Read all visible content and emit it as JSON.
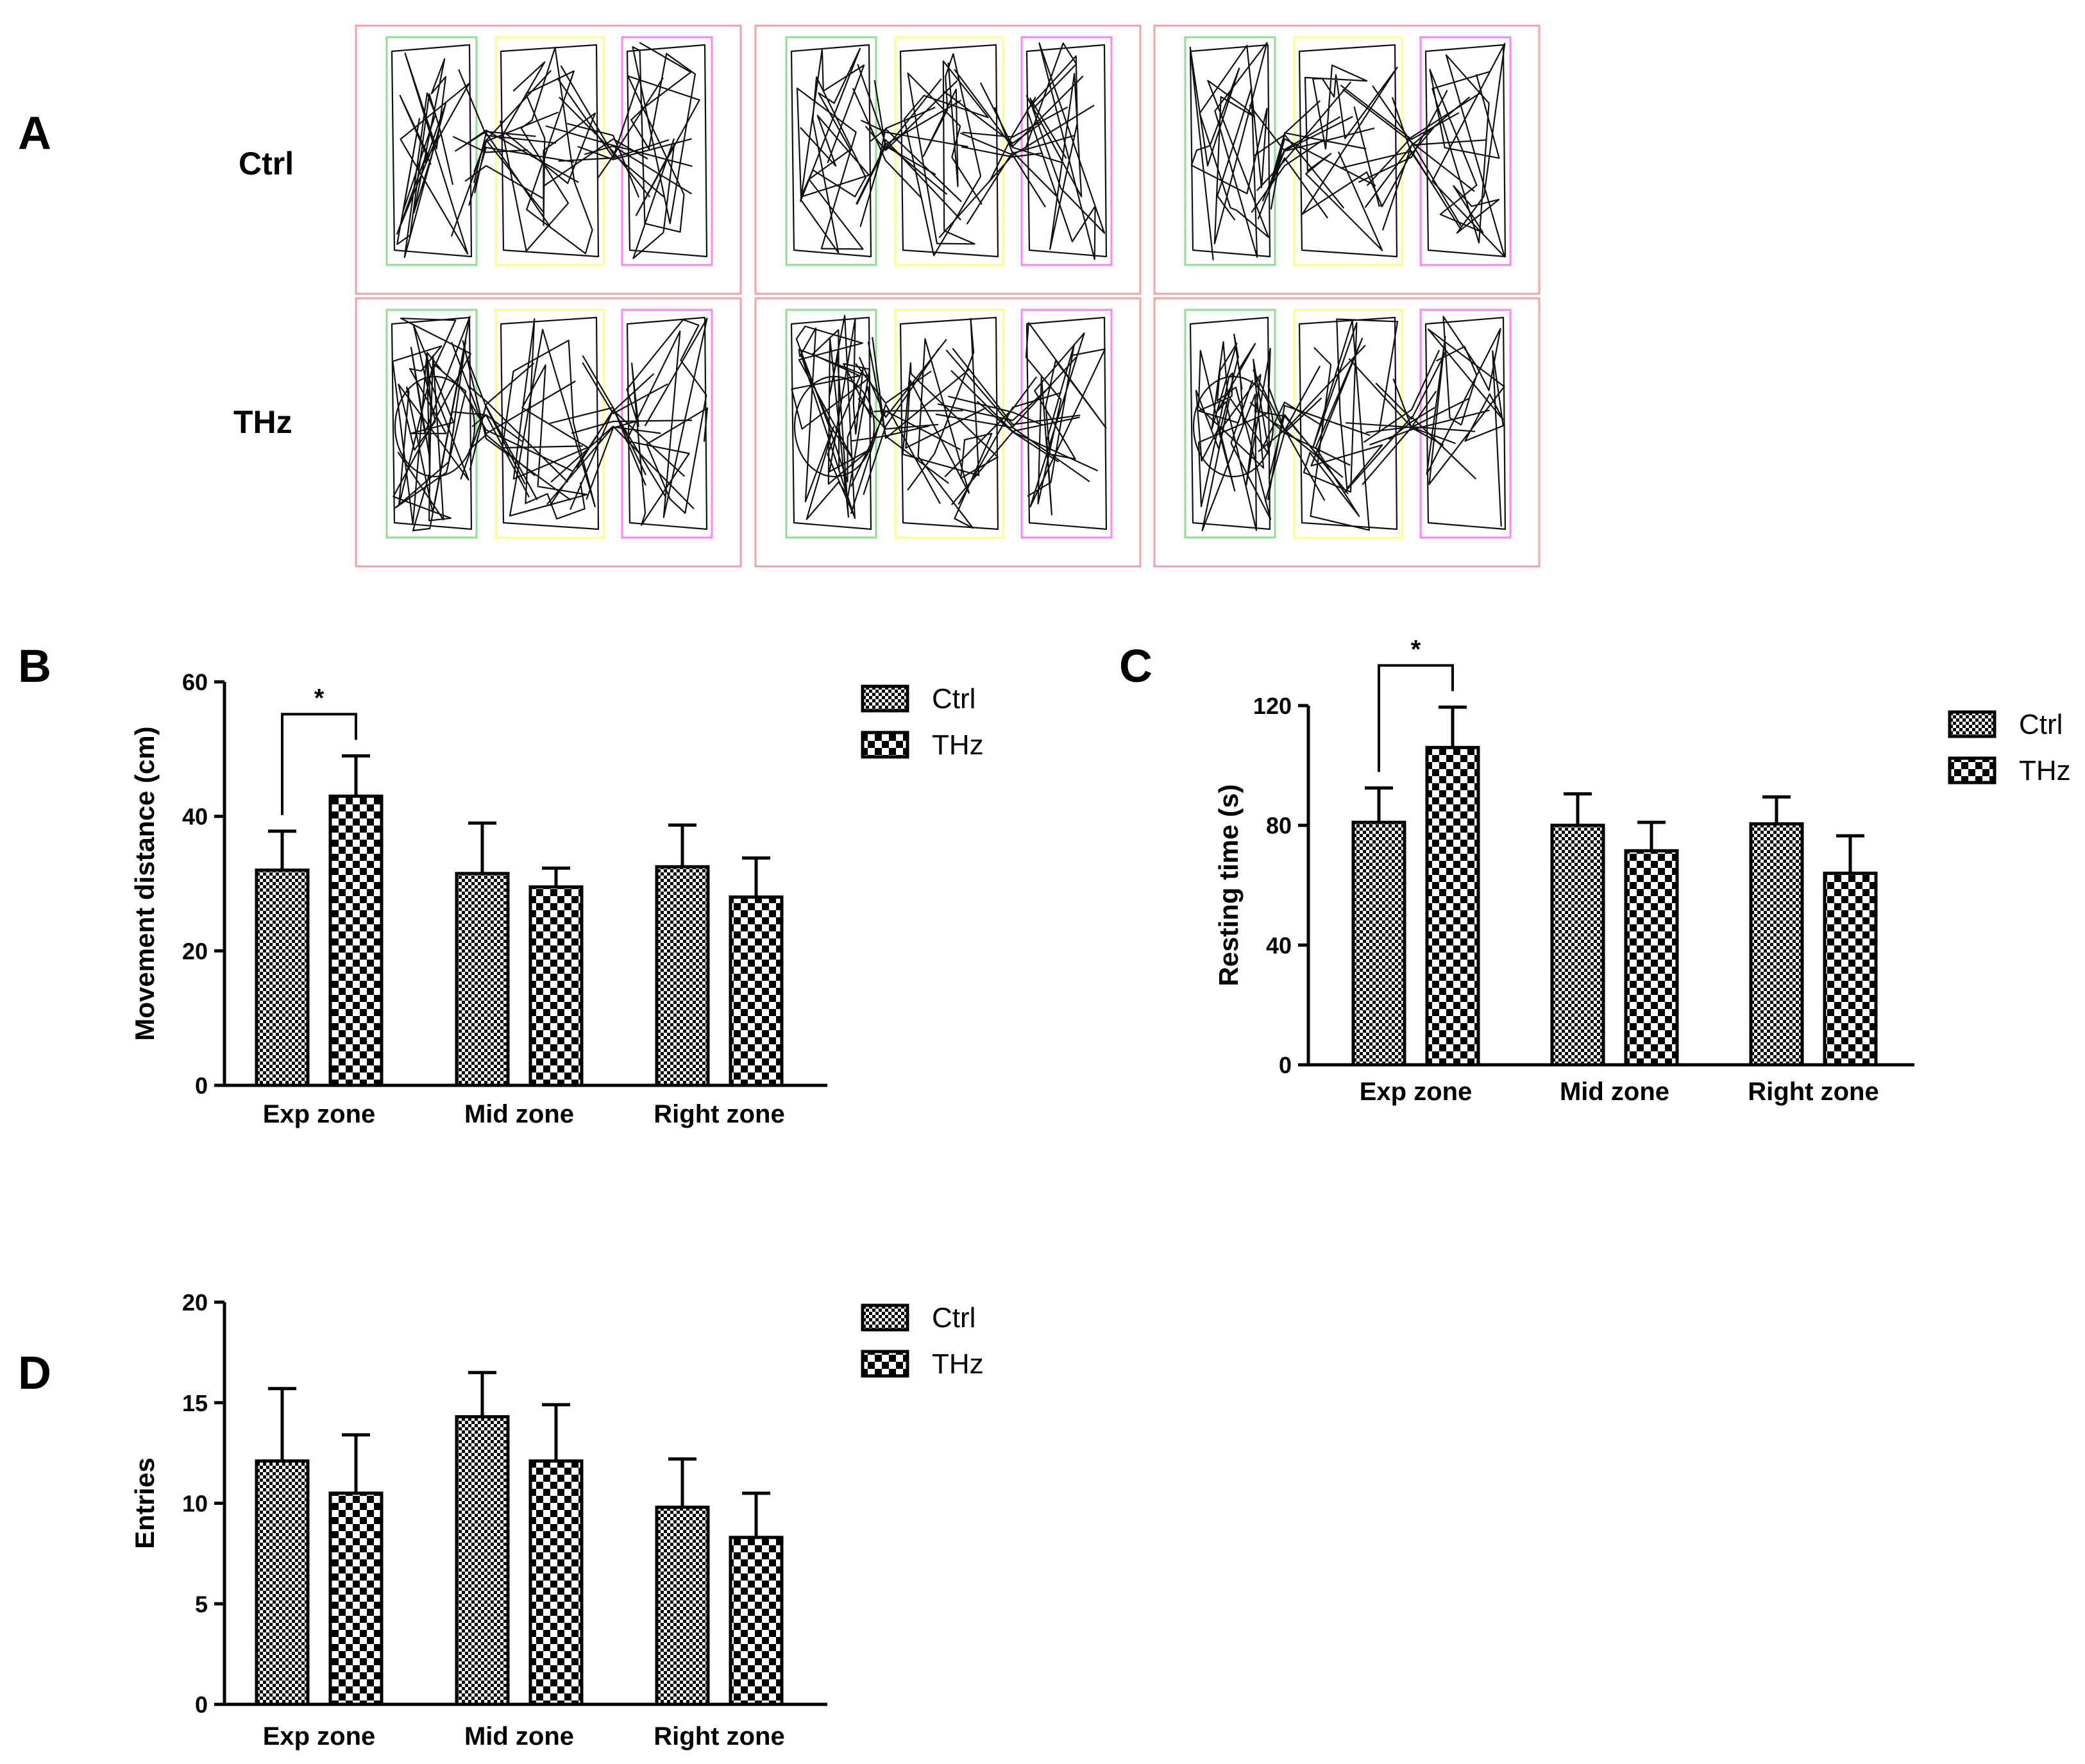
{
  "panel_labels": {
    "a": "A",
    "b": "B",
    "c": "C",
    "d": "D"
  },
  "colors": {
    "arena_border": "#f4a0a0",
    "exp_zone": "#8fe08f",
    "mid_zone": "#ffff80",
    "right_zone": "#ff80ff",
    "trace": "#111111",
    "ctrl_fill": "dense-checker",
    "thz_fill": "coarse-checker"
  },
  "tracking": {
    "rows": [
      {
        "label": "Ctrl",
        "arenas": 3
      },
      {
        "label": "THz",
        "arenas": 3
      }
    ]
  },
  "chart_data": [
    {
      "id": "B",
      "type": "bar",
      "categories": [
        "Exp zone",
        "Mid zone",
        "Right zone"
      ],
      "series": [
        {
          "name": "Ctrl",
          "values": [
            32,
            31.5,
            32.5
          ],
          "errors": [
            5.8,
            7.5,
            6.2
          ]
        },
        {
          "name": "THz",
          "values": [
            43,
            29.5,
            28
          ],
          "errors": [
            6,
            2.8,
            5.8
          ]
        }
      ],
      "ylabel": "Movement distance (cm)",
      "xlabel": "",
      "ylim": [
        0,
        60
      ],
      "yticks": [
        0,
        20,
        40,
        60
      ],
      "significance": [
        {
          "category": "Exp zone",
          "label": "*"
        }
      ],
      "legend": "top-right"
    },
    {
      "id": "C",
      "type": "bar",
      "categories": [
        "Exp zone",
        "Mid zone",
        "Right zone"
      ],
      "series": [
        {
          "name": "Ctrl",
          "values": [
            81,
            80,
            80.5
          ],
          "errors": [
            11.5,
            10.5,
            9
          ]
        },
        {
          "name": "THz",
          "values": [
            106,
            71.5,
            64
          ],
          "errors": [
            13.5,
            9.5,
            12.5
          ]
        }
      ],
      "ylabel": "Resting time (s)",
      "xlabel": "",
      "ylim": [
        0,
        120
      ],
      "yticks": [
        0,
        40,
        80,
        120
      ],
      "significance": [
        {
          "category": "Exp zone",
          "label": "*"
        }
      ],
      "legend": "top-right"
    },
    {
      "id": "D",
      "type": "bar",
      "categories": [
        "Exp zone",
        "Mid zone",
        "Right zone"
      ],
      "series": [
        {
          "name": "Ctrl",
          "values": [
            12.1,
            14.3,
            9.8
          ],
          "errors": [
            3.6,
            2.2,
            2.4
          ]
        },
        {
          "name": "THz",
          "values": [
            10.5,
            12.1,
            8.3
          ],
          "errors": [
            2.9,
            2.8,
            2.2
          ]
        }
      ],
      "ylabel": "Entries",
      "xlabel": "",
      "ylim": [
        0,
        20
      ],
      "yticks": [
        0,
        5,
        10,
        15,
        20
      ],
      "legend": "top-right"
    }
  ]
}
